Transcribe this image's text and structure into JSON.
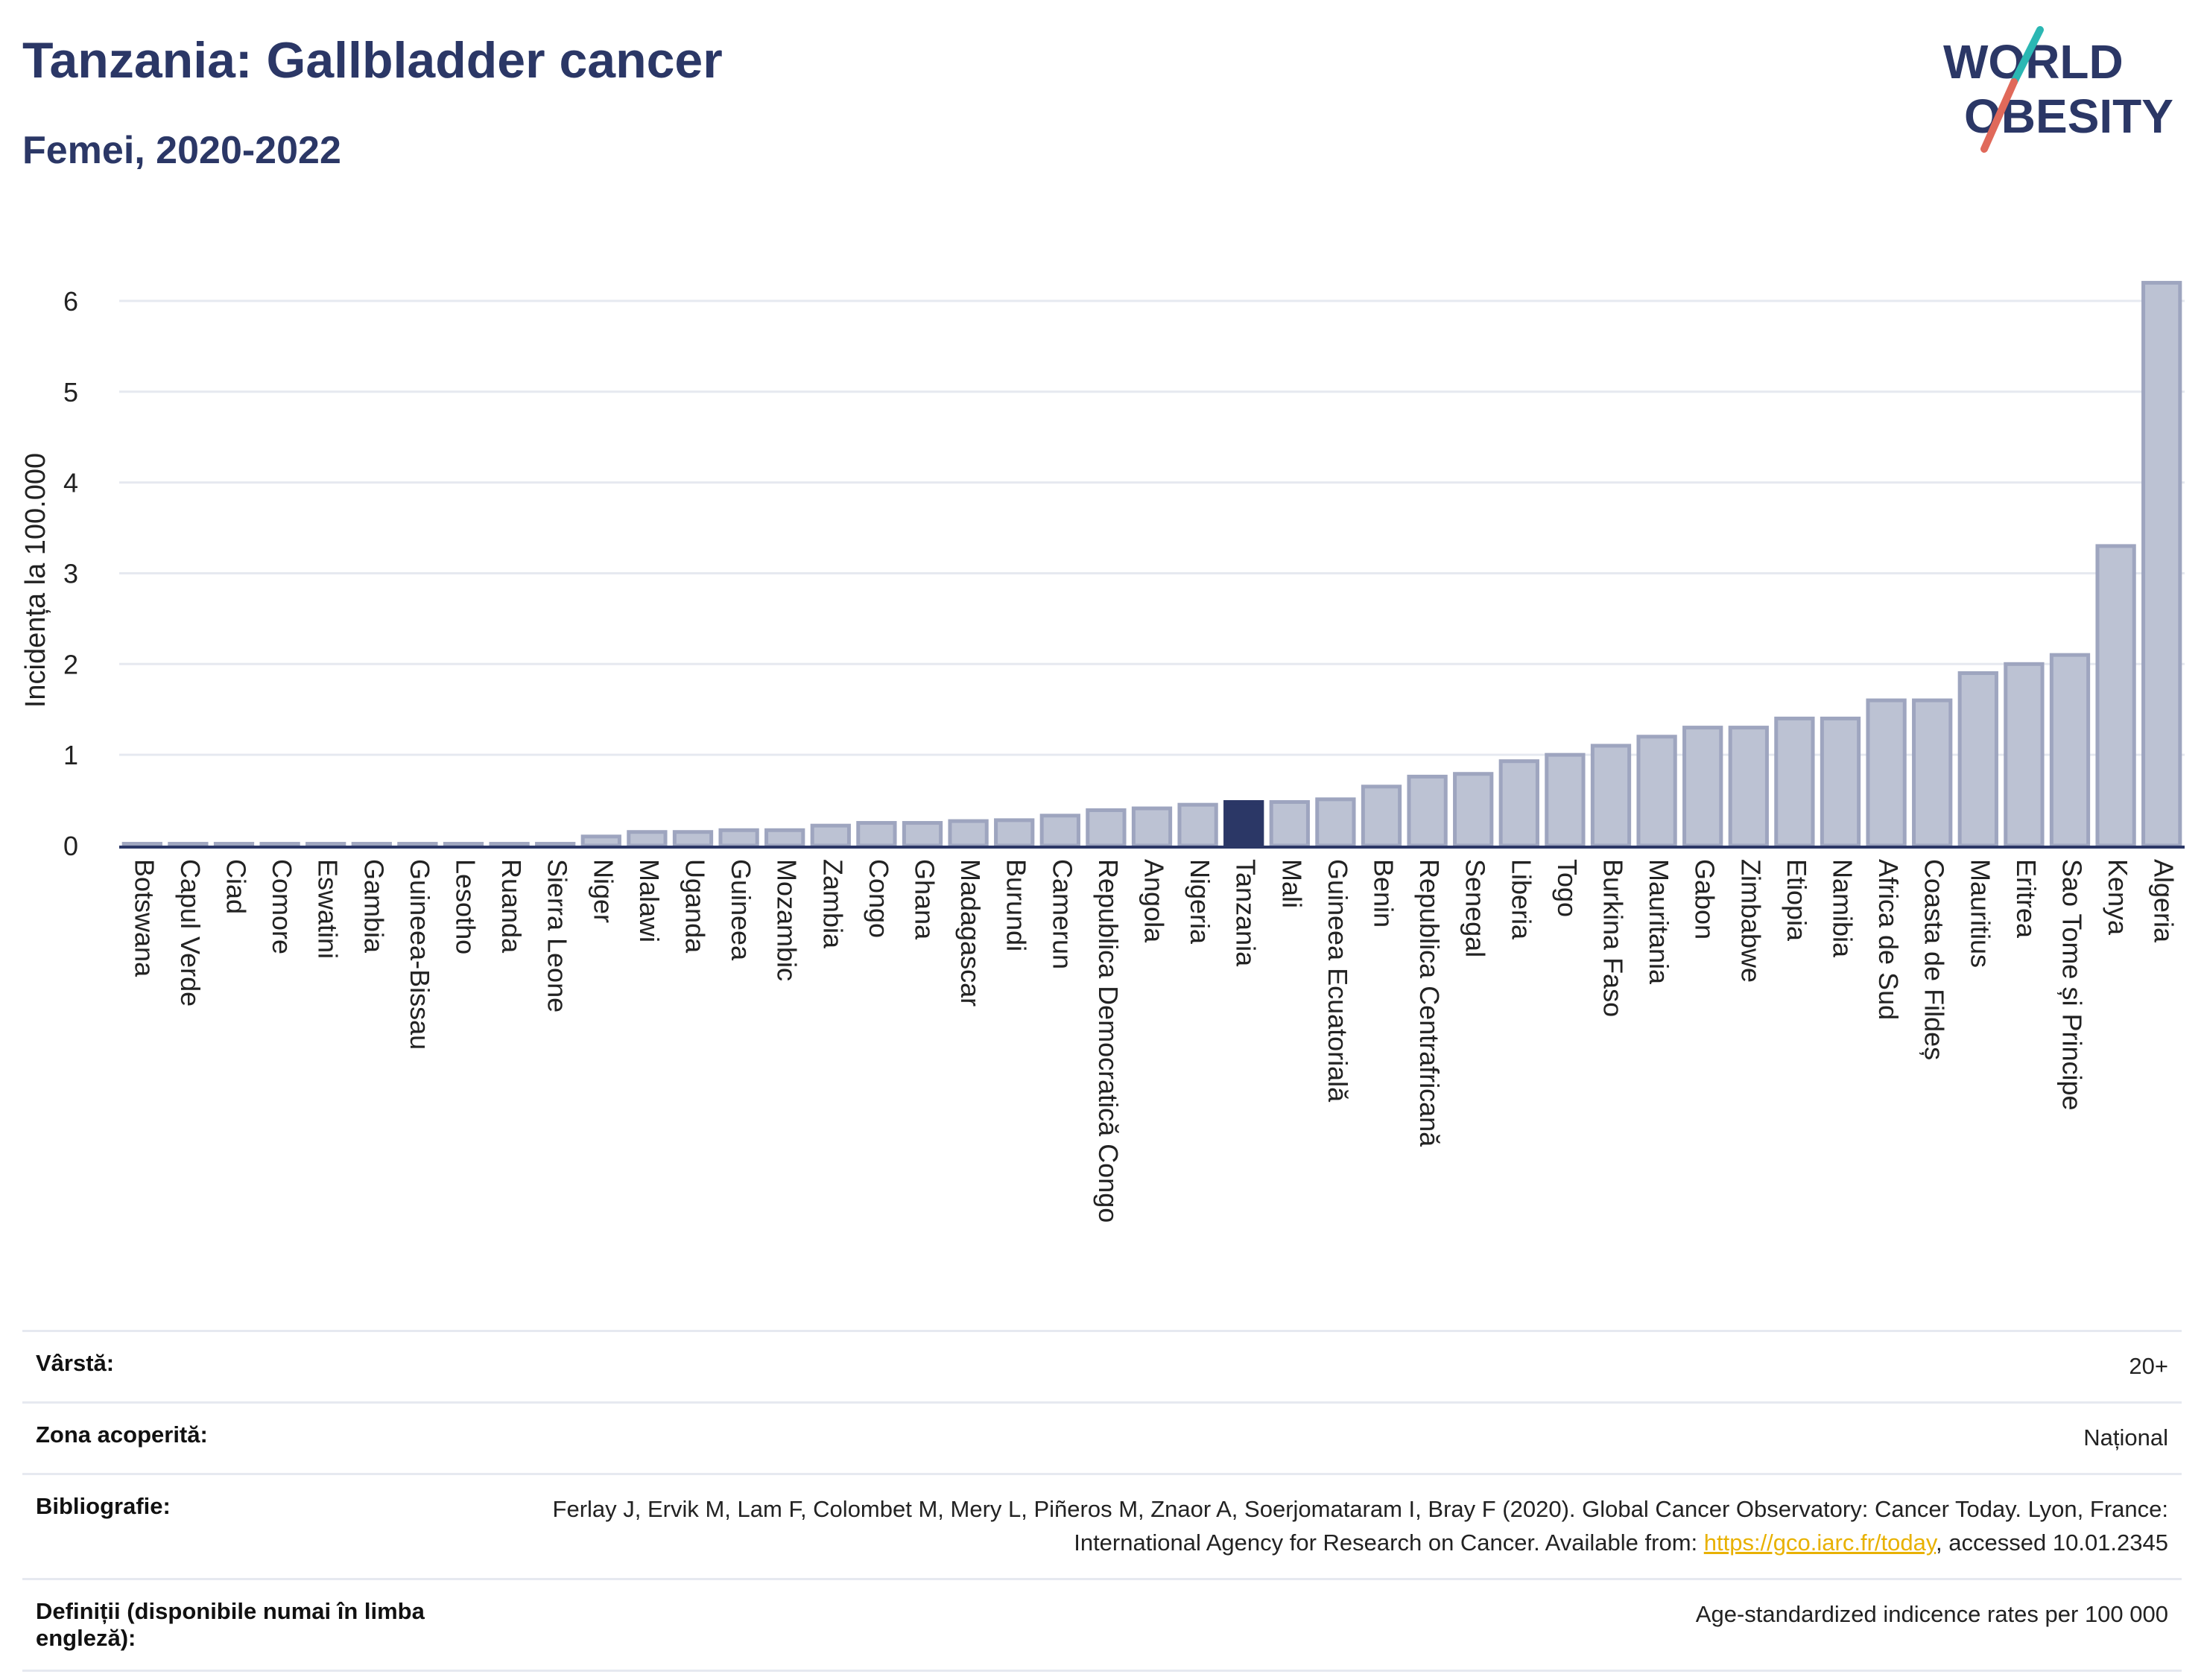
{
  "header": {
    "title": "Tanzania: Gallbladder cancer",
    "subtitle": "Femei, 2020-2022"
  },
  "logo": {
    "line1": "WORLD",
    "line2": "OBESITY",
    "accent_colors": [
      "#2bb7b3",
      "#e0695a"
    ]
  },
  "colors": {
    "bar": "#bcc2d3",
    "bar_stroke": "#9ea5bf",
    "highlight": "#2b3766",
    "grid": "#e6e9f0",
    "axis": "#2b3766",
    "text": "#2b3766",
    "link": "#e8b100"
  },
  "chart_data": {
    "type": "bar",
    "ylabel": "Incidența la 100.000",
    "ylim": [
      0,
      6.5
    ],
    "yticks": [
      0,
      1,
      2,
      3,
      4,
      5,
      6
    ],
    "grid": true,
    "highlight": "Tanzania",
    "categories": [
      "Botswana",
      "Capul Verde",
      "Ciad",
      "Comore",
      "Eswatini",
      "Gambia",
      "Guineea-Bissau",
      "Lesotho",
      "Ruanda",
      "Sierra Leone",
      "Niger",
      "Malawi",
      "Uganda",
      "Guineea",
      "Mozambic",
      "Zambia",
      "Congo",
      "Ghana",
      "Madagascar",
      "Burundi",
      "Camerun",
      "Republica Democratică Congo",
      "Angola",
      "Nigeria",
      "Tanzania",
      "Mali",
      "Guineea Ecuatorială",
      "Benin",
      "Republica Centrafricană",
      "Senegal",
      "Liberia",
      "Togo",
      "Burkina Faso",
      "Mauritania",
      "Gabon",
      "Zimbabwe",
      "Etiopia",
      "Namibia",
      "Africa de Sud",
      "Coasta de Fildeș",
      "Mauritius",
      "Eritrea",
      "Sao Tome și Principe",
      "Kenya",
      "Algeria"
    ],
    "values": [
      0.02,
      0.02,
      0.02,
      0.02,
      0.02,
      0.02,
      0.02,
      0.02,
      0.02,
      0.02,
      0.1,
      0.15,
      0.15,
      0.17,
      0.17,
      0.22,
      0.25,
      0.25,
      0.27,
      0.28,
      0.33,
      0.39,
      0.41,
      0.45,
      0.48,
      0.48,
      0.51,
      0.65,
      0.76,
      0.79,
      0.93,
      1.0,
      1.1,
      1.2,
      1.3,
      1.3,
      1.4,
      1.4,
      1.6,
      1.6,
      1.9,
      2.0,
      2.1,
      3.3,
      6.2
    ]
  },
  "meta": {
    "rows": [
      {
        "label": "Vârstă:",
        "value": "20+"
      },
      {
        "label": "Zona acoperită:",
        "value": "Național"
      },
      {
        "label": "Bibliografie:",
        "value_prefix": "Ferlay J, Ervik M, Lam F, Colombet M, Mery L, Piñeros M, Znaor A, Soerjomataram I, Bray F (2020). Global Cancer Observatory: Cancer Today. Lyon, France: International Agency for Research on Cancer. Available from: ",
        "link": "https://gco.iarc.fr/today",
        "value_suffix": ", accessed 10.01.2345"
      },
      {
        "label": "Definiții (disponibile numai în limba engleză):",
        "value": "Age-standardized indicence rates per 100 000"
      }
    ]
  }
}
